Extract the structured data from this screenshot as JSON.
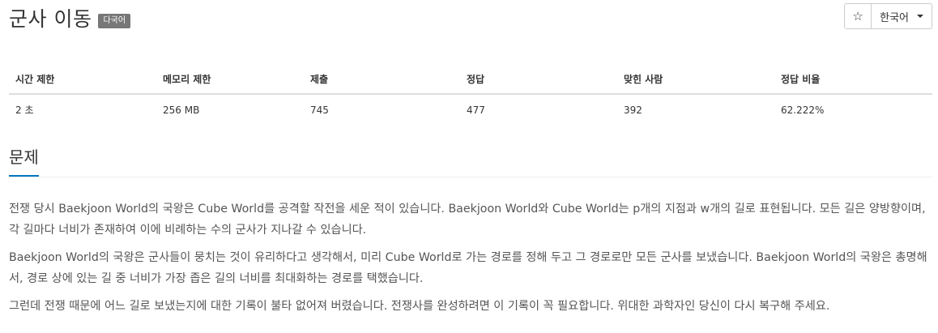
{
  "problem": {
    "title": "군사 이동",
    "language_badge": "다국어"
  },
  "toolbar": {
    "star_icon": "☆",
    "language": "한국어"
  },
  "stats": {
    "headers": [
      "시간 제한",
      "메모리 제한",
      "제출",
      "정답",
      "맞힌 사람",
      "정답 비율"
    ],
    "values": [
      "2 초",
      "256 MB",
      "745",
      "477",
      "392",
      "62.222%"
    ]
  },
  "section": {
    "title": "문제"
  },
  "description": {
    "paragraphs": [
      "전쟁 당시 Baekjoon World의 국왕은 Cube World를 공격할 작전을 세운 적이 있습니다. Baekjoon World와 Cube World는 p개의 지점과 w개의 길로 표현됩니다. 모든 길은 양방향이며, 각 길마다 너비가 존재하여 이에 비례하는 수의 군사가 지나갈 수 있습니다.",
      "Baekjoon World의 국왕은 군사들이 뭉치는 것이 유리하다고 생각해서, 미리 Cube World로 가는 경로를 정해 두고 그 경로로만 모든 군사를 보냈습니다. Baekjoon World의 국왕은 총명해서, 경로 상에 있는 길 중 너비가 가장 좁은 길의 너비를 최대화하는 경로를 택했습니다.",
      "그런데 전쟁 때문에 어느 길로 보냈는지에 대한 기록이 불타 없어져 버렸습니다. 전쟁사를 완성하려면 이 기록이 꼭 필요합니다. 위대한 과학자인 당신이 다시 복구해 주세요."
    ]
  }
}
